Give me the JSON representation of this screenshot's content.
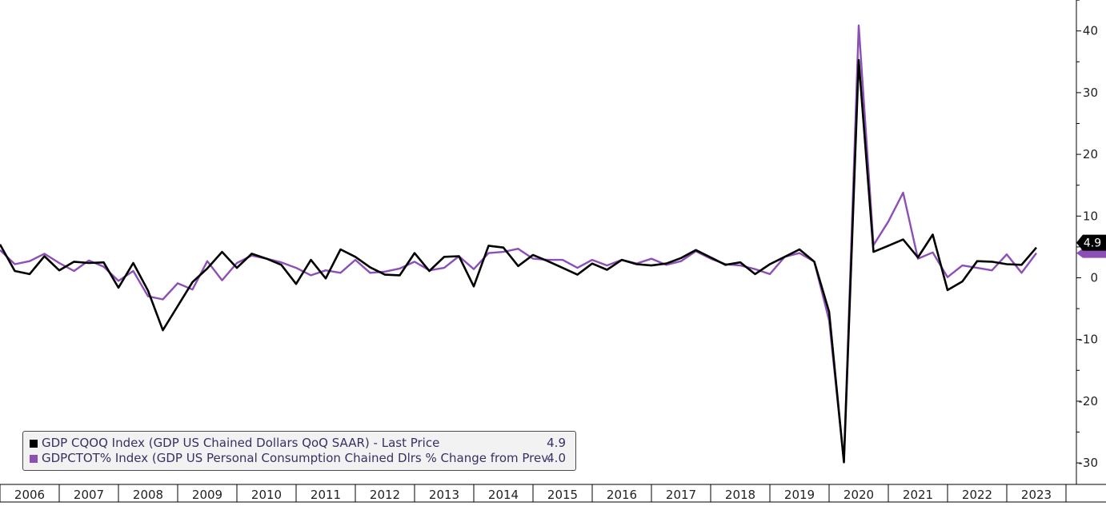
{
  "chart_data": {
    "type": "line",
    "x": [
      "2006Q1",
      "2006Q2",
      "2006Q3",
      "2006Q4",
      "2007Q1",
      "2007Q2",
      "2007Q3",
      "2007Q4",
      "2008Q1",
      "2008Q2",
      "2008Q3",
      "2008Q4",
      "2009Q1",
      "2009Q2",
      "2009Q3",
      "2009Q4",
      "2010Q1",
      "2010Q2",
      "2010Q3",
      "2010Q4",
      "2011Q1",
      "2011Q2",
      "2011Q3",
      "2011Q4",
      "2012Q1",
      "2012Q2",
      "2012Q3",
      "2012Q4",
      "2013Q1",
      "2013Q2",
      "2013Q3",
      "2013Q4",
      "2014Q1",
      "2014Q2",
      "2014Q3",
      "2014Q4",
      "2015Q1",
      "2015Q2",
      "2015Q3",
      "2015Q4",
      "2016Q1",
      "2016Q2",
      "2016Q3",
      "2016Q4",
      "2017Q1",
      "2017Q2",
      "2017Q3",
      "2017Q4",
      "2018Q1",
      "2018Q2",
      "2018Q3",
      "2018Q4",
      "2019Q1",
      "2019Q2",
      "2019Q3",
      "2019Q4",
      "2020Q1",
      "2020Q2",
      "2020Q3",
      "2020Q4",
      "2021Q1",
      "2021Q2",
      "2021Q3",
      "2021Q4",
      "2022Q1",
      "2022Q2",
      "2022Q3",
      "2022Q4",
      "2023Q1",
      "2023Q2",
      "2023Q3"
    ],
    "series": [
      {
        "name": "GDP CQOQ Index (GDP US Chained Dollars QoQ SAAR) - Last Price",
        "color": "#000000",
        "last_value_label": "4.9",
        "values": [
          5.4,
          1.1,
          0.6,
          3.5,
          1.2,
          2.6,
          2.4,
          2.5,
          -1.6,
          2.4,
          -2.1,
          -8.5,
          -4.6,
          -0.7,
          1.5,
          4.2,
          1.6,
          3.9,
          3.1,
          2.1,
          -1.0,
          2.9,
          -0.1,
          4.6,
          3.4,
          1.7,
          0.5,
          0.4,
          4.0,
          1.1,
          3.4,
          3.5,
          -1.4,
          5.2,
          4.9,
          1.9,
          3.7,
          2.7,
          1.6,
          0.5,
          2.3,
          1.3,
          2.9,
          2.2,
          2.0,
          2.3,
          3.2,
          4.5,
          3.3,
          2.1,
          2.5,
          0.6,
          2.2,
          3.4,
          4.6,
          2.6,
          -5.5,
          -29.9,
          35.3,
          4.2,
          5.2,
          6.2,
          3.3,
          7.0,
          -2.0,
          -0.6,
          2.7,
          2.6,
          2.2,
          2.1,
          4.9
        ]
      },
      {
        "name": "GDPCTOT% Index (GDP US Personal Consumption Chained Dlrs % Change from Prev...",
        "color": "#8c4fb5",
        "last_value_label": "4.0",
        "values": [
          4.5,
          2.2,
          2.7,
          3.9,
          2.4,
          1.1,
          2.8,
          1.8,
          -0.5,
          1.1,
          -3.0,
          -3.5,
          -0.9,
          -1.9,
          2.7,
          -0.4,
          2.4,
          3.6,
          3.1,
          2.5,
          1.6,
          0.4,
          1.2,
          0.8,
          2.9,
          0.8,
          1.0,
          1.5,
          2.6,
          1.2,
          1.6,
          3.5,
          1.4,
          4.0,
          4.2,
          4.7,
          3.1,
          2.9,
          2.9,
          1.6,
          2.9,
          2.0,
          2.9,
          2.3,
          3.1,
          2.1,
          2.7,
          4.3,
          3.1,
          2.2,
          2.0,
          1.4,
          0.6,
          3.4,
          4.0,
          2.6,
          -6.9,
          -29.7,
          40.9,
          5.3,
          9.1,
          13.8,
          3.1,
          4.1,
          0.1,
          2.0,
          1.6,
          1.2,
          3.8,
          0.8,
          4.0
        ]
      }
    ],
    "x_tick_labels": [
      "2006",
      "2007",
      "2008",
      "2009",
      "2010",
      "2011",
      "2012",
      "2013",
      "2014",
      "2015",
      "2016",
      "2017",
      "2018",
      "2019",
      "2020",
      "2021",
      "2022",
      "2023"
    ],
    "y_ticks": [
      40,
      30,
      20,
      10,
      0,
      -10,
      -20,
      -30
    ],
    "y_tick_labels": [
      "40",
      "30",
      "20",
      "10",
      "0",
      "-10",
      "-20",
      "-30"
    ],
    "ylim": [
      -33,
      45
    ],
    "y_axis_side": "right",
    "grid": false,
    "legend": {
      "position": "bottom-left",
      "entries": [
        {
          "label": "GDP CQOQ Index (GDP US Chained Dollars QoQ SAAR) - Last Price",
          "value": "4.9",
          "color": "#000000"
        },
        {
          "label": "GDPCTOT% Index (GDP US Personal Consumption Chained Dlrs % Change from Prev...",
          "value": "4.0",
          "color": "#8c4fb5"
        }
      ]
    },
    "title": "",
    "xlabel": "",
    "ylabel": ""
  }
}
